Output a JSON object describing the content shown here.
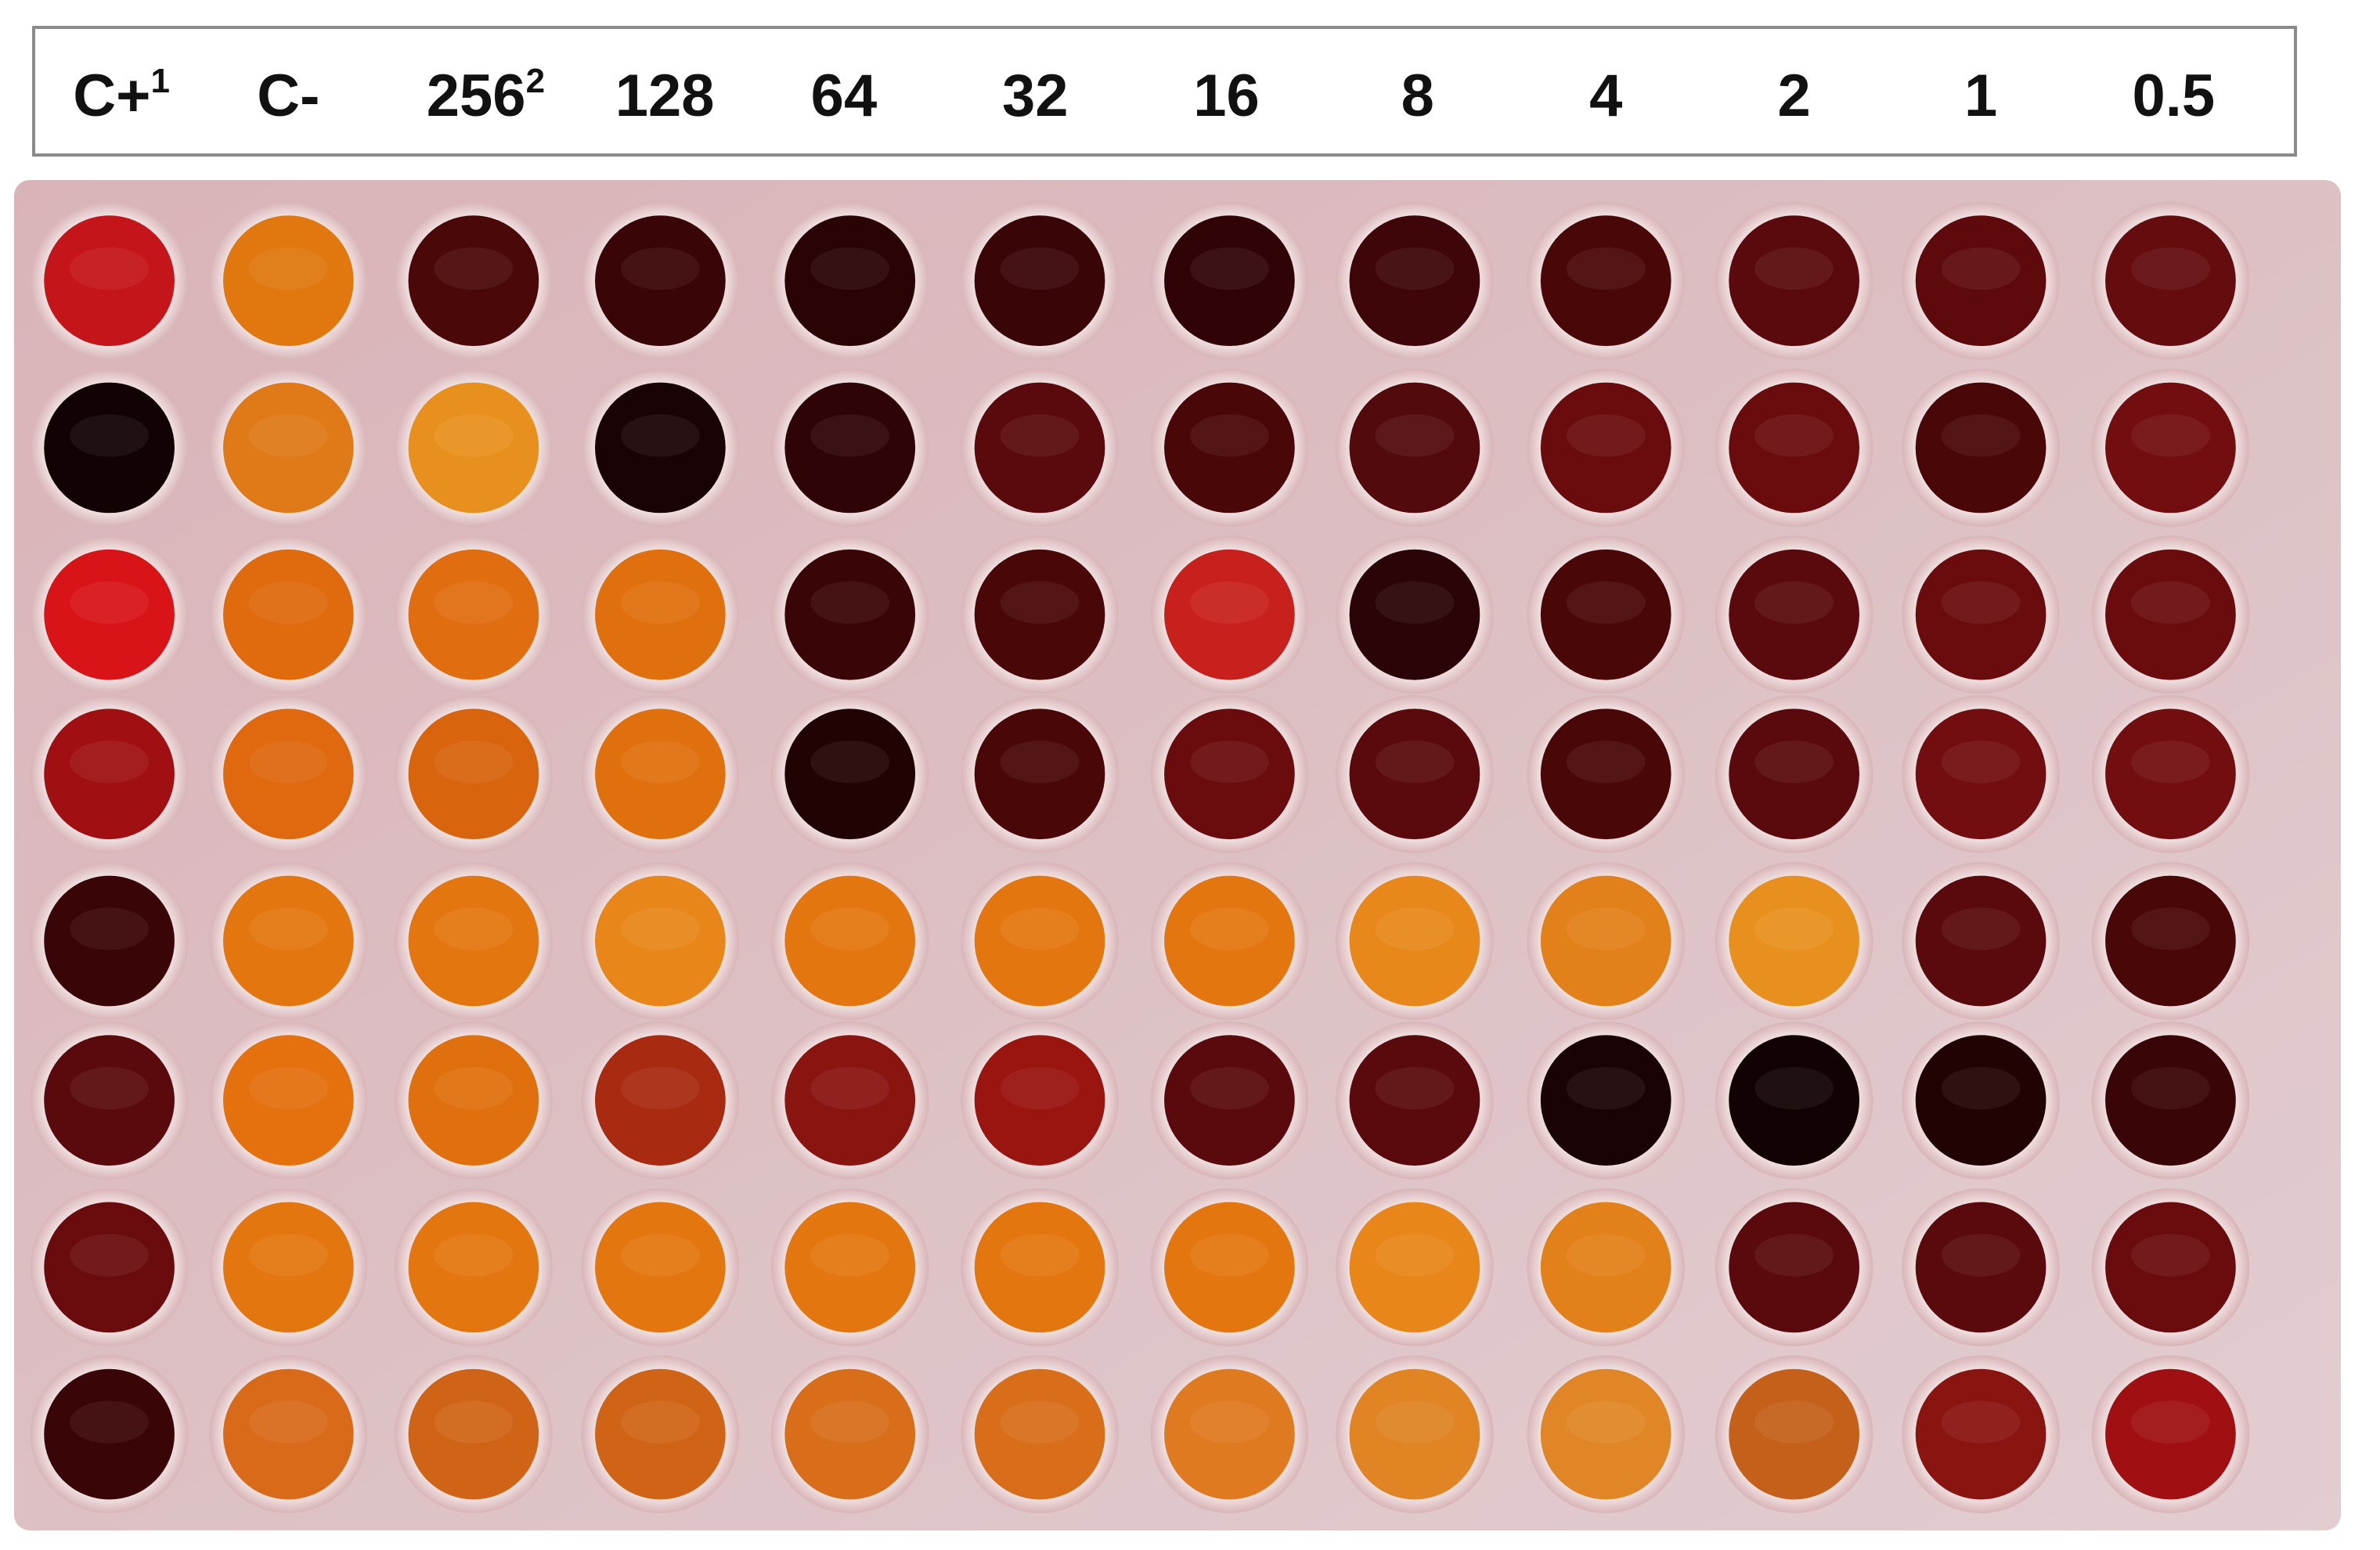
{
  "header": {
    "labels": [
      {
        "text": "C+",
        "sup": "1"
      },
      {
        "text": "C-"
      },
      {
        "text": "256",
        "sup": "2"
      },
      {
        "text": "128"
      },
      {
        "text": "64"
      },
      {
        "text": "32"
      },
      {
        "text": "16"
      },
      {
        "text": "8"
      },
      {
        "text": "4"
      },
      {
        "text": "2"
      },
      {
        "text": "1"
      },
      {
        "text": "0.5"
      }
    ]
  }
}
